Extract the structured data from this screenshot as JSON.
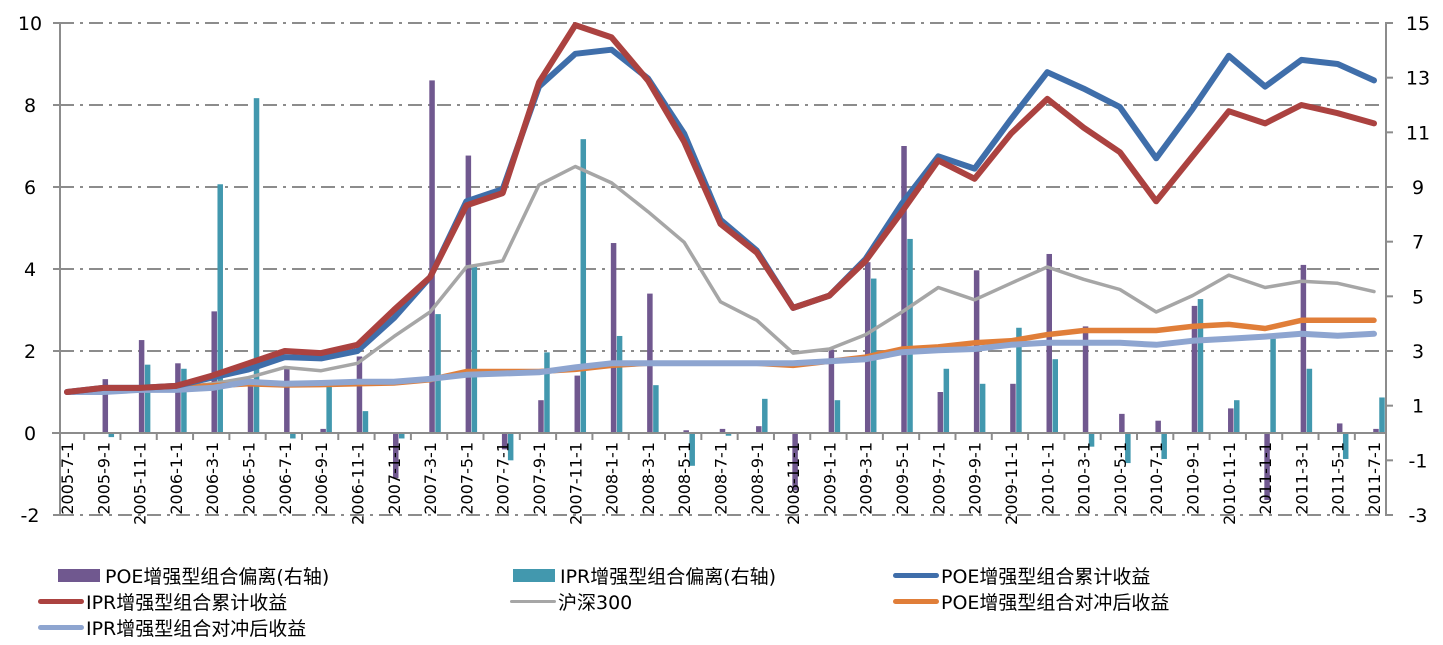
{
  "chart_data": {
    "type": "bar+line",
    "title": "",
    "categories": [
      "2005-7-1",
      "2005-9-1",
      "2005-11-1",
      "2006-1-1",
      "2006-3-1",
      "2006-5-1",
      "2006-7-1",
      "2006-9-1",
      "2006-11-1",
      "2007-1-1",
      "2007-3-1",
      "2007-5-1",
      "2007-7-1",
      "2007-9-1",
      "2007-11-1",
      "2008-1-1",
      "2008-3-1",
      "2008-5-1",
      "2008-7-1",
      "2008-9-1",
      "2008-11-1",
      "2009-1-1",
      "2009-3-1",
      "2009-5-1",
      "2009-7-1",
      "2009-9-1",
      "2009-11-1",
      "2010-1-1",
      "2010-3-1",
      "2010-5-1",
      "2010-7-1",
      "2010-9-1",
      "2010-11-1",
      "2011-1-1",
      "2011-3-1",
      "2011-5-1",
      "2011-7-1"
    ],
    "left_axis": {
      "ylim": [
        -2,
        10
      ],
      "ticks": [
        "-2",
        "0",
        "2",
        "4",
        "6",
        "8",
        "10"
      ]
    },
    "right_axis": {
      "ylim": [
        -3,
        15
      ],
      "ticks": [
        "-3",
        "-1",
        "1",
        "3",
        "5",
        "7",
        "9",
        "11",
        "13",
        "15"
      ]
    },
    "grid": true,
    "legend_position": "bottom",
    "series": [
      {
        "name": "POE增强型组合偏离(右轴)",
        "type": "bar",
        "axis": "right",
        "color": "#70588f",
        "values": [
          0,
          1.97,
          3.4,
          2.55,
          4.45,
          1.8,
          2.45,
          0.15,
          2.8,
          -1.65,
          12.9,
          10.15,
          -0.6,
          1.2,
          2.1,
          6.95,
          5.1,
          0.1,
          0.15,
          0.25,
          -2.1,
          3.05,
          6.25,
          10.5,
          1.5,
          5.95,
          1.8,
          6.55,
          3.9,
          0.7,
          0.45,
          4.65,
          0.9,
          -2.45,
          6.15,
          0.35,
          0.15
        ]
      },
      {
        "name": "IPR增强型组合偏离(右轴)",
        "type": "bar",
        "axis": "right",
        "color": "#4298ae",
        "values": [
          0,
          -0.15,
          2.5,
          2.35,
          9.1,
          12.25,
          -0.2,
          1.75,
          0.8,
          -0.2,
          4.35,
          6.1,
          -1.0,
          2.95,
          10.75,
          3.55,
          1.75,
          -1.2,
          -0.1,
          1.25,
          0,
          1.2,
          5.65,
          7.1,
          2.35,
          1.8,
          3.85,
          2.7,
          -0.5,
          -1.1,
          -0.95,
          4.9,
          1.2,
          3.45,
          2.35,
          -0.95,
          1.3
        ]
      },
      {
        "name": "POE增强型组合累计收益",
        "type": "line",
        "axis": "left",
        "color": "#3f6eaa",
        "values": [
          1.0,
          1.1,
          1.1,
          1.15,
          1.35,
          1.55,
          1.85,
          1.82,
          2.0,
          2.8,
          3.8,
          5.65,
          5.95,
          8.45,
          9.25,
          9.35,
          8.65,
          7.3,
          5.2,
          4.45,
          3.05,
          3.35,
          4.25,
          5.6,
          6.75,
          6.45,
          7.65,
          8.8,
          8.4,
          7.95,
          6.7,
          7.9,
          9.2,
          8.45,
          9.1,
          9.0,
          8.6
        ]
      },
      {
        "name": "IPR增强型组合累计收益",
        "type": "line",
        "axis": "left",
        "color": "#ab4240",
        "values": [
          1.0,
          1.1,
          1.1,
          1.15,
          1.4,
          1.7,
          2.0,
          1.95,
          2.15,
          3.0,
          3.8,
          5.55,
          5.85,
          8.55,
          9.95,
          9.65,
          8.6,
          7.1,
          5.1,
          4.4,
          3.05,
          3.35,
          4.2,
          5.4,
          6.65,
          6.2,
          7.3,
          8.15,
          7.45,
          6.85,
          5.65,
          6.75,
          7.85,
          7.55,
          8.0,
          7.8,
          7.55
        ]
      },
      {
        "name": "沪深300",
        "type": "line",
        "axis": "left",
        "color": "#a6a6a6",
        "values": [
          1.0,
          1.05,
          1.1,
          1.1,
          1.2,
          1.35,
          1.6,
          1.52,
          1.7,
          2.35,
          2.95,
          4.05,
          4.2,
          6.05,
          6.5,
          6.1,
          5.4,
          4.65,
          3.2,
          2.75,
          1.95,
          2.05,
          2.4,
          2.95,
          3.55,
          3.25,
          3.65,
          4.05,
          3.75,
          3.5,
          2.95,
          3.35,
          3.85,
          3.55,
          3.7,
          3.65,
          3.45
        ]
      },
      {
        "name": "POE增强型组合对冲后收益",
        "type": "line",
        "axis": "left",
        "color": "#e07e39",
        "values": [
          1.0,
          1.05,
          1.1,
          1.12,
          1.15,
          1.2,
          1.17,
          1.18,
          1.2,
          1.22,
          1.3,
          1.5,
          1.5,
          1.5,
          1.55,
          1.65,
          1.7,
          1.7,
          1.7,
          1.7,
          1.65,
          1.75,
          1.85,
          2.05,
          2.1,
          2.2,
          2.25,
          2.4,
          2.5,
          2.5,
          2.5,
          2.6,
          2.65,
          2.55,
          2.75,
          2.75,
          2.75
        ]
      },
      {
        "name": "IPR增强型组合对冲后收益",
        "type": "line",
        "axis": "left",
        "color": "#8ea5d0",
        "values": [
          1.0,
          1.0,
          1.05,
          1.05,
          1.1,
          1.25,
          1.2,
          1.22,
          1.25,
          1.25,
          1.32,
          1.42,
          1.45,
          1.48,
          1.6,
          1.7,
          1.7,
          1.7,
          1.7,
          1.7,
          1.7,
          1.75,
          1.8,
          1.97,
          2.02,
          2.05,
          2.15,
          2.2,
          2.2,
          2.2,
          2.15,
          2.25,
          2.3,
          2.35,
          2.42,
          2.37,
          2.42
        ]
      }
    ],
    "legend_order": [
      0,
      1,
      2,
      3,
      4,
      5,
      6
    ]
  }
}
